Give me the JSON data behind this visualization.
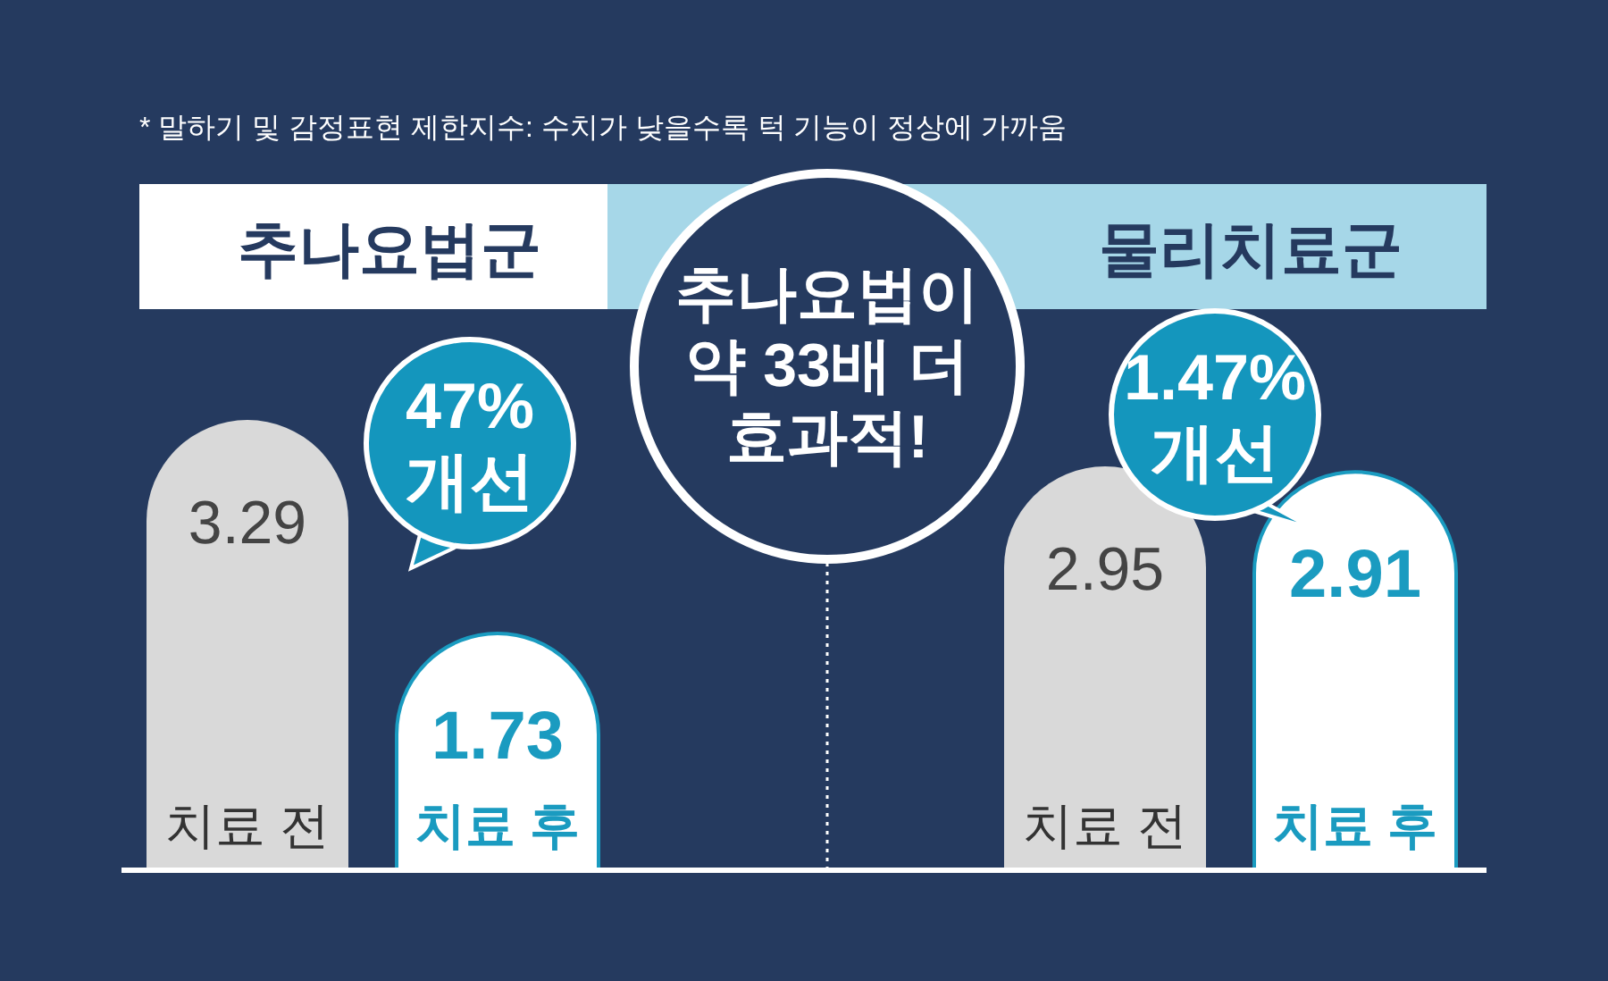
{
  "chart_data": [
    {
      "type": "bar",
      "title": "추나요법군",
      "categories": [
        "치료 전",
        "치료 후"
      ],
      "values": [
        3.29,
        1.73
      ],
      "colors": [
        "#d9d9d9",
        "#ffffff"
      ],
      "data_labels": true,
      "annotations": [
        "* 말하기 및 감정표현 제한지수: 수치가 낮을수록 턱 기능이 정상에 가까움",
        "47%\n개선",
        "추나요법이\n약 33배 더\n효과적!"
      ]
    },
    {
      "type": "bar",
      "title": "물리치료군",
      "categories": [
        "치료 전",
        "치료 후"
      ],
      "values": [
        2.95,
        2.91
      ],
      "colors": [
        "#d9d9d9",
        "#ffffff"
      ],
      "data_labels": true,
      "annotations": [
        "1.47%\n개선"
      ]
    }
  ]
}
